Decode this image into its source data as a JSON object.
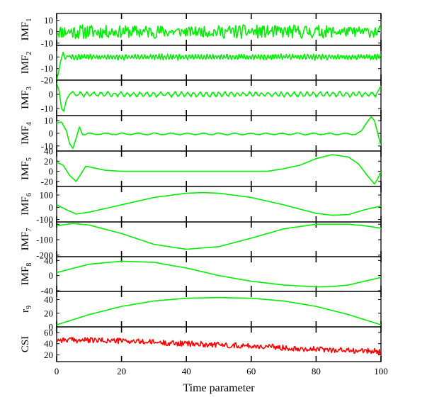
{
  "chart_data": {
    "type": "line",
    "xlabel": "Time parameter",
    "xlim": [
      0,
      100
    ],
    "x_ticks": [
      0,
      20,
      40,
      60,
      80,
      100
    ],
    "x_tick_labels": [
      "0",
      "20",
      "40",
      "60",
      "80",
      "100"
    ],
    "colors": {
      "imf": "#00ee00",
      "csi": "#ff0000",
      "axis": "#000000"
    },
    "panels": [
      {
        "label": "IMF",
        "sub": "1",
        "ylim": [
          -12,
          16
        ],
        "yticks": [
          -10,
          0,
          10
        ],
        "ytick_labels": [
          "-10",
          "0",
          "10"
        ],
        "color": "imf",
        "signal": {
          "kind": "noise",
          "amplitude": 5.5,
          "offset": 0,
          "step": 0.25,
          "seed": 11
        }
      },
      {
        "label": "IMF",
        "sub": "2",
        "ylim": [
          -20,
          10
        ],
        "yticks": [
          -20,
          -10,
          0
        ],
        "ytick_labels": [
          "-20",
          "-10",
          "0"
        ],
        "color": "imf",
        "signal": {
          "kind": "oscillation",
          "amplitude": 2.2,
          "offset": 0,
          "period": 0.9,
          "seed": 22,
          "points": [
            [
              0,
              -20
            ],
            [
              0.6,
              -13
            ],
            [
              1.2,
              -4
            ],
            [
              2,
              4
            ],
            [
              2.6,
              -2
            ],
            [
              3.2,
              1
            ],
            [
              4,
              0
            ]
          ]
        }
      },
      {
        "label": "IMF",
        "sub": "3",
        "ylim": [
          -15,
          10
        ],
        "yticks": [
          -10,
          0
        ],
        "ytick_labels": [
          "-10",
          "0"
        ],
        "color": "imf",
        "signal": {
          "kind": "oscillation",
          "amplitude": 1.6,
          "offset": 0,
          "period": 2.0,
          "seed": 33,
          "points": [
            [
              0,
              8
            ],
            [
              0.8,
              2
            ],
            [
              1.5,
              -10
            ],
            [
              2.2,
              -12
            ],
            [
              3,
              -4
            ],
            [
              4,
              0
            ],
            [
              5,
              2
            ],
            [
              6,
              -1
            ],
            [
              7,
              0
            ]
          ],
          "tail": [
            [
              98.5,
              0
            ],
            [
              99.3,
              3
            ],
            [
              100,
              6
            ]
          ]
        }
      },
      {
        "label": "IMF",
        "sub": "4",
        "ylim": [
          -14,
          14
        ],
        "yticks": [
          -10,
          0,
          10
        ],
        "ytick_labels": [
          "-10",
          "0",
          "10"
        ],
        "color": "imf",
        "signal": {
          "kind": "oscillation",
          "amplitude": 0.7,
          "offset": -0.5,
          "period": 5.0,
          "seed": 44,
          "points": [
            [
              0,
              8
            ],
            [
              1.5,
              9
            ],
            [
              3,
              2
            ],
            [
              4,
              -8
            ],
            [
              5,
              -12
            ],
            [
              6,
              -4
            ],
            [
              7,
              5
            ],
            [
              8,
              -1
            ],
            [
              9,
              -1
            ]
          ],
          "tail": [
            [
              92,
              -1
            ],
            [
              94,
              2
            ],
            [
              95.5,
              8
            ],
            [
              97,
              13
            ],
            [
              98,
              10
            ],
            [
              99,
              0
            ],
            [
              100,
              -10
            ]
          ]
        }
      },
      {
        "label": "IMF",
        "sub": "5",
        "ylim": [
          -30,
          40
        ],
        "yticks": [
          -20,
          0,
          20,
          40
        ],
        "ytick_labels": [
          "-20",
          "0",
          "20",
          "40"
        ],
        "color": "imf",
        "signal": {
          "kind": "points",
          "points": [
            [
              0,
              18
            ],
            [
              2,
              12
            ],
            [
              4,
              -8
            ],
            [
              6,
              -20
            ],
            [
              7,
              -10
            ],
            [
              9,
              10
            ],
            [
              12,
              6
            ],
            [
              15,
              2
            ],
            [
              20,
              0
            ],
            [
              30,
              0
            ],
            [
              40,
              0
            ],
            [
              55,
              0
            ],
            [
              65,
              0
            ],
            [
              70,
              5
            ],
            [
              75,
              12
            ],
            [
              80,
              25
            ],
            [
              85,
              33
            ],
            [
              90,
              28
            ],
            [
              93,
              15
            ],
            [
              96,
              -10
            ],
            [
              98,
              -25
            ],
            [
              99,
              -15
            ],
            [
              100,
              0
            ]
          ]
        }
      },
      {
        "label": "IMF",
        "sub": "6",
        "ylim": [
          -120,
          170
        ],
        "yticks": [
          -100,
          0,
          100
        ],
        "ytick_labels": [
          "-100",
          "0",
          "100"
        ],
        "color": "imf",
        "signal": {
          "kind": "points",
          "points": [
            [
              0,
              20
            ],
            [
              3,
              -20
            ],
            [
              6,
              -55
            ],
            [
              10,
              -40
            ],
            [
              20,
              20
            ],
            [
              30,
              80
            ],
            [
              40,
              115
            ],
            [
              45,
              120
            ],
            [
              50,
              115
            ],
            [
              60,
              80
            ],
            [
              70,
              20
            ],
            [
              80,
              -50
            ],
            [
              85,
              -65
            ],
            [
              90,
              -60
            ],
            [
              95,
              -20
            ],
            [
              100,
              10
            ]
          ]
        }
      },
      {
        "label": "IMF",
        "sub": "7",
        "ylim": [
          -210,
          15
        ],
        "yticks": [
          -200,
          -100,
          0
        ],
        "ytick_labels": [
          "-200",
          "-100",
          "0"
        ],
        "color": "imf",
        "signal": {
          "kind": "points",
          "points": [
            [
              0,
              -10
            ],
            [
              5,
              5
            ],
            [
              10,
              -5
            ],
            [
              20,
              -60
            ],
            [
              30,
              -130
            ],
            [
              40,
              -162
            ],
            [
              50,
              -145
            ],
            [
              60,
              -90
            ],
            [
              70,
              -30
            ],
            [
              80,
              0
            ],
            [
              90,
              0
            ],
            [
              95,
              -10
            ],
            [
              100,
              -25
            ]
          ]
        }
      },
      {
        "label": "IMF",
        "sub": "8",
        "ylim": [
          -42,
          50
        ],
        "yticks": [
          -40,
          0,
          40
        ],
        "ytick_labels": [
          "-40",
          "0",
          "40"
        ],
        "color": "imf",
        "signal": {
          "kind": "points",
          "points": [
            [
              0,
              8
            ],
            [
              10,
              30
            ],
            [
              20,
              38
            ],
            [
              30,
              35
            ],
            [
              40,
              20
            ],
            [
              50,
              0
            ],
            [
              60,
              -15
            ],
            [
              70,
              -25
            ],
            [
              80,
              -30
            ],
            [
              85,
              -29
            ],
            [
              90,
              -25
            ],
            [
              95,
              -15
            ],
            [
              100,
              -5
            ]
          ]
        }
      },
      {
        "label": "r",
        "sub": "9",
        "ylim": [
          0,
          52
        ],
        "yticks": [
          0,
          20,
          40
        ],
        "ytick_labels": [
          "0",
          "20",
          "40"
        ],
        "color": "imf",
        "signal": {
          "kind": "points",
          "points": [
            [
              0,
              3
            ],
            [
              10,
              18
            ],
            [
              20,
              30
            ],
            [
              30,
              38
            ],
            [
              40,
              42
            ],
            [
              50,
              43
            ],
            [
              60,
              42
            ],
            [
              70,
              38
            ],
            [
              80,
              30
            ],
            [
              90,
              18
            ],
            [
              100,
              3
            ]
          ]
        }
      },
      {
        "label": "CSI",
        "sub": "",
        "ylim": [
          8,
          70
        ],
        "yticks": [
          20,
          40,
          60
        ],
        "ytick_labels": [
          "20",
          "40",
          "60"
        ],
        "color": "csi",
        "signal": {
          "kind": "noisytrend",
          "amplitude": 5,
          "step": 0.25,
          "seed": 99,
          "points": [
            [
              0,
              47
            ],
            [
              10,
              46
            ],
            [
              20,
              45
            ],
            [
              40,
              40
            ],
            [
              60,
              36
            ],
            [
              80,
              30
            ],
            [
              90,
              28
            ],
            [
              100,
              26
            ]
          ]
        }
      }
    ]
  }
}
